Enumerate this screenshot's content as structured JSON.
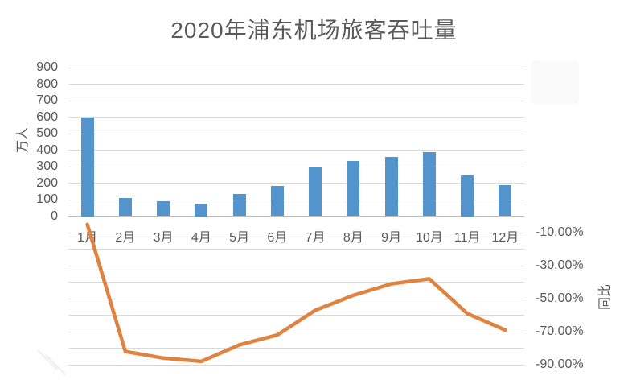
{
  "chart_data": {
    "type": "combo-bar-line",
    "title": "2020年浦东机场旅客吞吐量",
    "categories": [
      "1月",
      "2月",
      "3月",
      "4月",
      "5月",
      "6月",
      "7月",
      "8月",
      "9月",
      "10月",
      "11月",
      "12月"
    ],
    "series": [
      {
        "name": "旅客吞吐量",
        "type": "bar",
        "axis": "left",
        "unit": "万人",
        "color": "#5494cd",
        "values": [
          600,
          110,
          90,
          75,
          135,
          185,
          295,
          335,
          360,
          390,
          250,
          190
        ]
      },
      {
        "name": "同比",
        "type": "line",
        "axis": "right",
        "unit": "%",
        "color": "#e08240",
        "values": [
          -5,
          -82,
          -86,
          -88,
          -78,
          -72,
          -57,
          -48,
          -41,
          -38,
          -59,
          -69
        ]
      }
    ],
    "left_axis": {
      "title": "万人",
      "min": 0,
      "max": 900,
      "step": 100,
      "tick_labels": [
        "900",
        "800",
        "700",
        "600",
        "500",
        "400",
        "300",
        "200",
        "100",
        "0"
      ]
    },
    "right_axis": {
      "title": "同比",
      "min_percent": -90,
      "max_percent": 90,
      "tick_labels": [
        "-10.00%",
        "-30.00%",
        "-50.00%",
        "-70.00%",
        "-90.00%"
      ]
    },
    "grid": true,
    "legend_position": "none",
    "colors": {
      "bar": "#5494cd",
      "line": "#e08240",
      "grid": "#d9d9d9",
      "zero_axis": "#bdbdbd",
      "text": "#595959"
    }
  }
}
